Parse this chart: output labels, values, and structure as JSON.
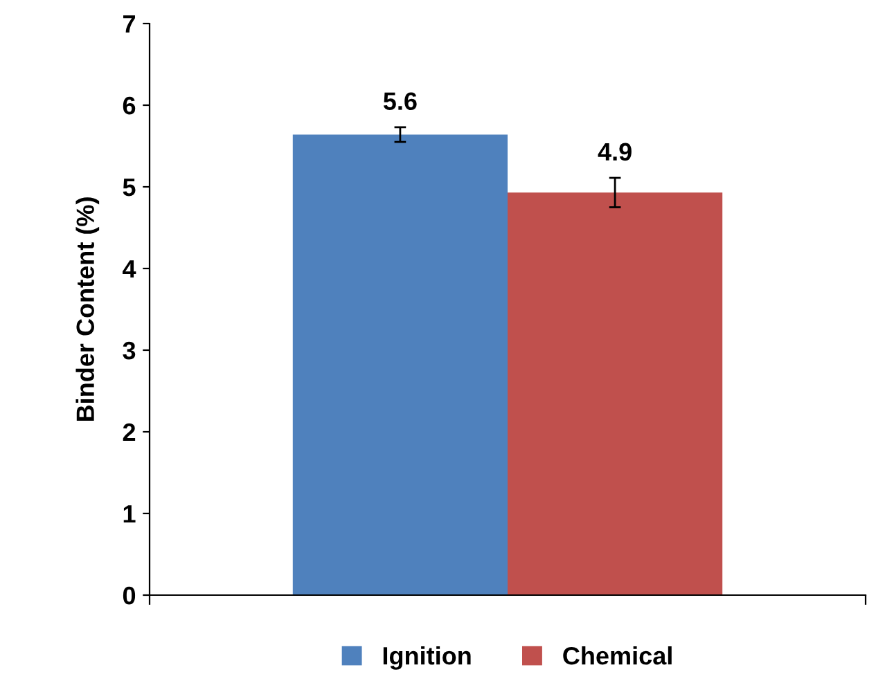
{
  "chart_data": {
    "type": "bar",
    "ylabel": "Binder Content (%)",
    "categories": [
      null
    ],
    "series": [
      {
        "name": "Ignition",
        "color": "#4f81bd",
        "values": [
          5.64
        ],
        "errors": [
          0.09
        ],
        "value_labels": [
          "5.6"
        ]
      },
      {
        "name": "Chemical",
        "color": "#c0504d",
        "values": [
          4.93
        ],
        "errors": [
          0.18
        ],
        "value_labels": [
          "4.9"
        ]
      }
    ],
    "ylim": [
      0,
      7
    ],
    "yticks": [
      0,
      1,
      2,
      3,
      4,
      5,
      6,
      7
    ],
    "grid": false,
    "legend": "bottom"
  }
}
